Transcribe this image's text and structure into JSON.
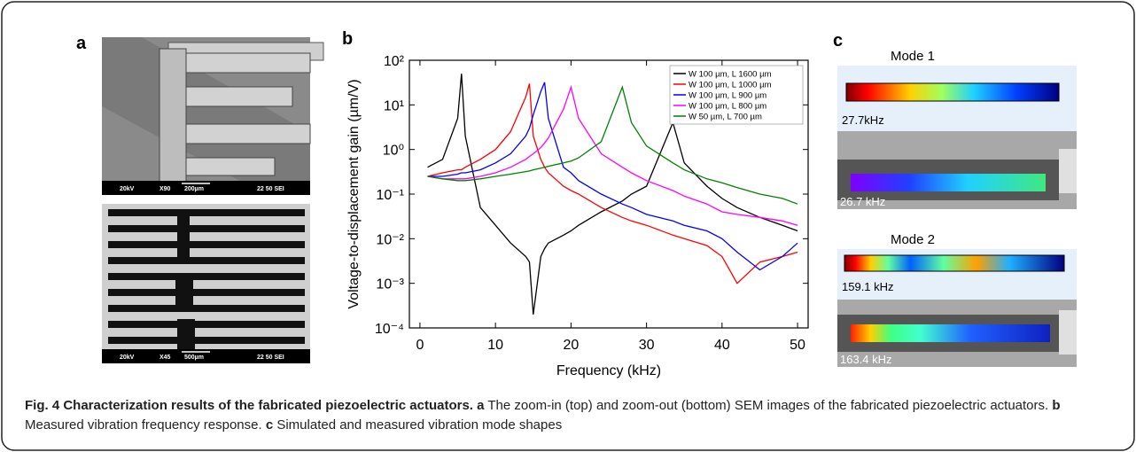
{
  "panels": {
    "a": {
      "label": "a",
      "sem_top": [
        "20kV",
        "X90",
        "200µm",
        "22 50 SEI"
      ],
      "sem_bottom": [
        "20kV",
        "X45",
        "500µm",
        "22 50 SEI"
      ]
    },
    "b": {
      "label": "b"
    },
    "c": {
      "label": "c",
      "mode1": {
        "title": "Mode 1",
        "simulated": "27.7kHz",
        "measured": "26.7 kHz"
      },
      "mode2": {
        "title": "Mode 2",
        "simulated": "159.1 kHz",
        "measured": "163.4 kHz"
      }
    }
  },
  "chart_data": {
    "type": "line",
    "xlabel": "Frequency (kHz)",
    "ylabel": "Voltage-to-displacement gain (µm/V)",
    "x": [
      1,
      3,
      5,
      5.5,
      6,
      8,
      10,
      12,
      14,
      14.5,
      15,
      16,
      16.5,
      17,
      19,
      20,
      21,
      24,
      26.8,
      28,
      30,
      33.5,
      35,
      38,
      40,
      42,
      45,
      48,
      50
    ],
    "xlim": [
      -1.4,
      51.4
    ],
    "xticks": [
      0,
      10,
      20,
      30,
      40,
      50
    ],
    "ylim": [
      0.0001,
      100
    ],
    "y_scale": "log",
    "yticks": [
      {
        "value": 0.0001,
        "label": "10⁻⁴"
      },
      {
        "value": 0.001,
        "label": "10⁻³"
      },
      {
        "value": 0.01,
        "label": "10⁻²"
      },
      {
        "value": 0.1,
        "label": "10⁻¹"
      },
      {
        "value": 1,
        "label": "10⁰"
      },
      {
        "value": 10,
        "label": "10¹"
      },
      {
        "value": 100,
        "label": "10²"
      }
    ],
    "grid": false,
    "legend": "upper right",
    "series": [
      {
        "name": "W 100 µm, L 1600 µm",
        "color": "#000000",
        "values": [
          0.4,
          0.6,
          5,
          50,
          2,
          0.05,
          0.02,
          0.008,
          0.004,
          0.003,
          0.0002,
          0.004,
          0.006,
          0.008,
          0.012,
          0.015,
          0.02,
          0.04,
          0.07,
          0.1,
          0.15,
          4,
          0.5,
          0.15,
          0.08,
          0.05,
          0.03,
          0.02,
          0.015
        ]
      },
      {
        "name": "W 100 µm, L 1000 µm",
        "color": "#ff0000",
        "values": [
          0.25,
          0.3,
          0.35,
          0.35,
          0.4,
          0.6,
          1,
          2.5,
          15,
          30,
          2,
          0.6,
          0.4,
          0.3,
          0.15,
          0.12,
          0.1,
          0.05,
          0.03,
          0.025,
          0.02,
          0.012,
          0.01,
          0.007,
          0.004,
          0.001,
          0.003,
          0.004,
          0.005
        ]
      },
      {
        "name": "W 100 µm, L 900 µm",
        "color": "#0000ff",
        "values": [
          0.25,
          0.25,
          0.28,
          0.3,
          0.3,
          0.35,
          0.5,
          0.8,
          2,
          3,
          6,
          20,
          32,
          5,
          0.4,
          0.3,
          0.2,
          0.1,
          0.06,
          0.05,
          0.035,
          0.025,
          0.02,
          0.015,
          0.01,
          0.005,
          0.002,
          0.004,
          0.008
        ]
      },
      {
        "name": "W 100 µm, L 800 µm",
        "color": "#ff00ff",
        "values": [
          0.25,
          0.22,
          0.22,
          0.22,
          0.22,
          0.25,
          0.3,
          0.4,
          0.6,
          0.7,
          0.8,
          1.1,
          1.4,
          1.8,
          8,
          25,
          5,
          0.8,
          0.4,
          0.3,
          0.2,
          0.12,
          0.09,
          0.06,
          0.04,
          0.035,
          0.03,
          0.025,
          0.02
        ]
      },
      {
        "name": "W 50 µm, L 700 µm",
        "color": "#008000",
        "values": [
          0.25,
          0.22,
          0.2,
          0.2,
          0.2,
          0.22,
          0.25,
          0.28,
          0.32,
          0.33,
          0.35,
          0.38,
          0.4,
          0.42,
          0.5,
          0.55,
          0.65,
          1.5,
          25,
          4,
          1.2,
          0.5,
          0.35,
          0.22,
          0.18,
          0.14,
          0.1,
          0.08,
          0.06
        ]
      }
    ]
  },
  "caption": {
    "title": "Fig. 4 Characterization results of the fabricated piezoelectric actuators.",
    "parts": [
      {
        "label": "a",
        "text": " The zoom-in (top) and zoom-out (bottom) SEM images of the fabricated piezoelectric actuators. "
      },
      {
        "label": "b",
        "text": " Measured vibration frequency response. "
      },
      {
        "label": "c",
        "text": " Simulated and measured vibration mode shapes"
      }
    ]
  }
}
